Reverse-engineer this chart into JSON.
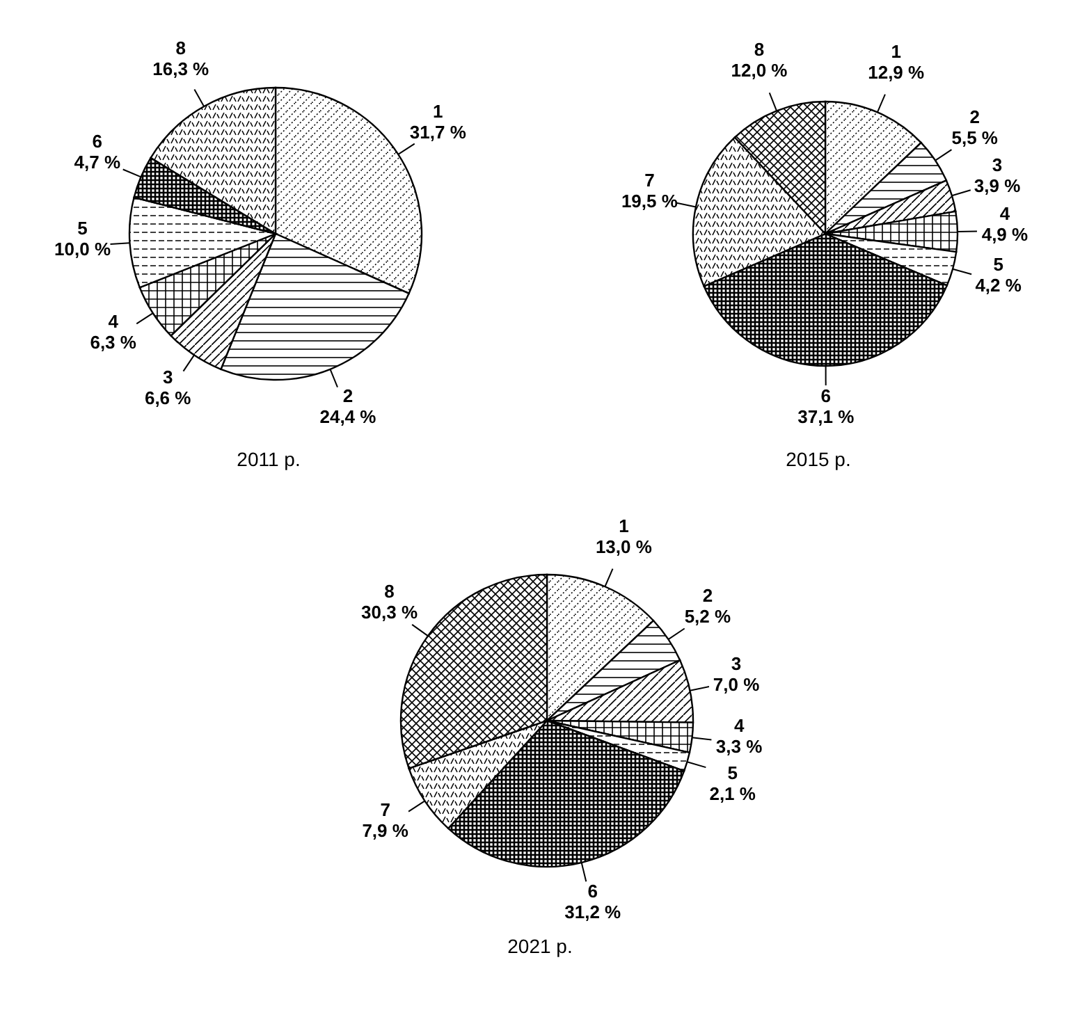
{
  "chart_data": [
    {
      "type": "pie",
      "title": "2011 р.",
      "categories": [
        "1",
        "2",
        "3",
        "4",
        "5",
        "6",
        "8"
      ],
      "values": [
        31.7,
        24.4,
        6.6,
        6.3,
        10.0,
        4.7,
        16.3
      ],
      "value_labels": [
        "31,7 %",
        "24,4 %",
        "6,6 %",
        "6,3 %",
        "10,0 %",
        "4,7 %",
        "16,3 %"
      ],
      "colors": [
        "#000000",
        "#000000",
        "#000000",
        "#000000",
        "#000000",
        "#000000",
        "#000000"
      ],
      "legend": false
    },
    {
      "type": "pie",
      "title": "2015 р.",
      "categories": [
        "1",
        "2",
        "3",
        "4",
        "5",
        "6",
        "7",
        "8"
      ],
      "values": [
        12.9,
        5.5,
        3.9,
        4.9,
        4.2,
        37.1,
        19.5,
        12.0
      ],
      "value_labels": [
        "12,9 %",
        "5,5 %",
        "3,9 %",
        "4,9 %",
        "4,2 %",
        "37,1 %",
        "19,5 %",
        "12,0 %"
      ],
      "colors": [
        "#000000",
        "#000000",
        "#000000",
        "#000000",
        "#000000",
        "#000000",
        "#000000",
        "#000000"
      ],
      "legend": false
    },
    {
      "type": "pie",
      "title": "2021 р.",
      "categories": [
        "1",
        "2",
        "3",
        "4",
        "5",
        "6",
        "7",
        "8"
      ],
      "values": [
        13.0,
        5.2,
        7.0,
        3.3,
        2.1,
        31.2,
        7.9,
        30.3
      ],
      "value_labels": [
        "13,0 %",
        "5,2 %",
        "7,0 %",
        "3,3 %",
        "2,1 %",
        "31,2 %",
        "7,9 %",
        "30,3 %"
      ],
      "colors": [
        "#000000",
        "#000000",
        "#000000",
        "#000000",
        "#000000",
        "#000000",
        "#000000",
        "#000000"
      ],
      "legend": false
    }
  ]
}
